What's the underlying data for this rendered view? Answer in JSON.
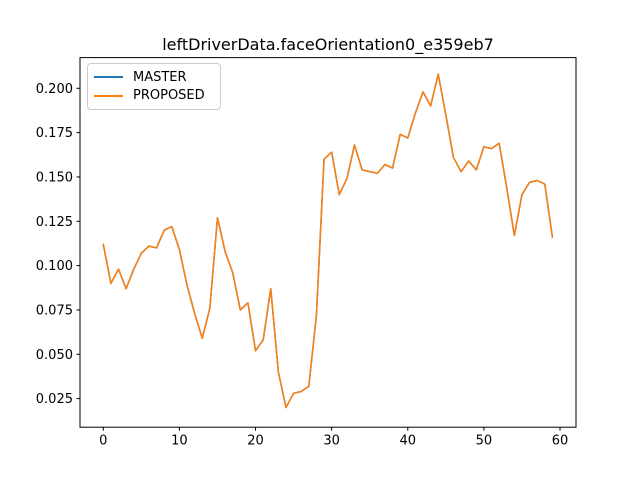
{
  "title": "leftDriverData.faceOrientation0_e359eb7",
  "colors": {
    "background": "#ffffff",
    "spine": "#000000",
    "master": "#1f77b4",
    "proposed": "#ff7f0e",
    "legend_border": "#cccccc",
    "text": "#000000"
  },
  "legend": {
    "items": [
      {
        "label": "MASTER",
        "color": "#1f77b4"
      },
      {
        "label": "PROPOSED",
        "color": "#ff7f0e"
      }
    ]
  },
  "chart_data": {
    "type": "line",
    "title": "leftDriverData.faceOrientation0_e359eb7",
    "xlabel": "",
    "ylabel": "",
    "grid": false,
    "legend_position": "upper left",
    "xlim": [
      -3.06,
      62.1
    ],
    "ylim": [
      0.00888,
      0.21731
    ],
    "xticks": [
      0,
      10,
      20,
      30,
      40,
      50,
      60
    ],
    "xtick_labels": [
      "0",
      "10",
      "20",
      "30",
      "40",
      "50",
      "60"
    ],
    "yticks": [
      0.025,
      0.05,
      0.075,
      0.1,
      0.125,
      0.15,
      0.175,
      0.2
    ],
    "ytick_labels": [
      "0.025",
      "0.050",
      "0.075",
      "0.100",
      "0.125",
      "0.150",
      "0.175",
      "0.200"
    ],
    "x": [
      0,
      1,
      2,
      3,
      4,
      5,
      6,
      7,
      8,
      9,
      10,
      11,
      12,
      13,
      14,
      15,
      16,
      17,
      18,
      19,
      20,
      21,
      22,
      23,
      24,
      25,
      26,
      27,
      28,
      29,
      30,
      31,
      32,
      33,
      34,
      35,
      36,
      37,
      38,
      39,
      40,
      41,
      42,
      43,
      44,
      45,
      46,
      47,
      48,
      49,
      50,
      51,
      52,
      53,
      54,
      55,
      56,
      57,
      58,
      59
    ],
    "series": [
      {
        "name": "MASTER",
        "color": "#1f77b4",
        "values": [
          0.112,
          0.09,
          0.098,
          0.087,
          0.098,
          0.107,
          0.111,
          0.11,
          0.12,
          0.122,
          0.109,
          0.089,
          0.073,
          0.059,
          0.076,
          0.127,
          0.108,
          0.096,
          0.075,
          0.079,
          0.052,
          0.058,
          0.087,
          0.04,
          0.02,
          0.028,
          0.029,
          0.032,
          0.072,
          0.16,
          0.164,
          0.14,
          0.149,
          0.168,
          0.154,
          0.153,
          0.152,
          0.157,
          0.155,
          0.174,
          0.172,
          0.186,
          0.198,
          0.19,
          0.208,
          0.185,
          0.161,
          0.153,
          0.159,
          0.154,
          0.167,
          0.166,
          0.169,
          0.144,
          0.117,
          0.14,
          0.147,
          0.148,
          0.146,
          0.116
        ]
      },
      {
        "name": "PROPOSED",
        "color": "#ff7f0e",
        "values": [
          0.112,
          0.09,
          0.098,
          0.087,
          0.098,
          0.107,
          0.111,
          0.11,
          0.12,
          0.122,
          0.109,
          0.089,
          0.073,
          0.059,
          0.076,
          0.127,
          0.108,
          0.096,
          0.075,
          0.079,
          0.052,
          0.058,
          0.087,
          0.04,
          0.02,
          0.028,
          0.029,
          0.032,
          0.072,
          0.16,
          0.164,
          0.14,
          0.149,
          0.168,
          0.154,
          0.153,
          0.152,
          0.157,
          0.155,
          0.174,
          0.172,
          0.186,
          0.198,
          0.19,
          0.208,
          0.185,
          0.161,
          0.153,
          0.159,
          0.154,
          0.167,
          0.166,
          0.169,
          0.144,
          0.117,
          0.14,
          0.147,
          0.148,
          0.146,
          0.116
        ]
      }
    ]
  }
}
